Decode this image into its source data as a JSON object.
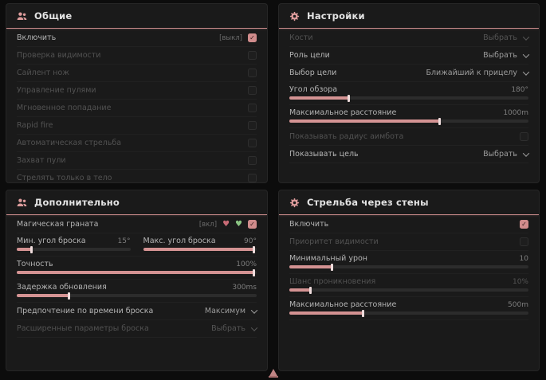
{
  "colors": {
    "accent": "#d49393",
    "panel_bg": "#1a1a1a",
    "page_bg": "#0c0c0c",
    "header_line": "#c98a8a"
  },
  "glyphs": {
    "check": "✓",
    "heart": "♥"
  },
  "panels": [
    {
      "title": "Общие",
      "icon": "users-icon",
      "rows": [
        {
          "type": "toggle",
          "label": "Включить",
          "tag": "[выкл]",
          "checked": true,
          "dim": false
        },
        {
          "type": "toggle",
          "label": "Проверка видимости",
          "checked": false,
          "dim": true
        },
        {
          "type": "toggle",
          "label": "Сайлент нож",
          "checked": false,
          "dim": true
        },
        {
          "type": "toggle",
          "label": "Управление пулями",
          "checked": false,
          "dim": true
        },
        {
          "type": "toggle",
          "label": "Мгновенное попадание",
          "checked": false,
          "dim": true
        },
        {
          "type": "toggle",
          "label": "Rapid fire",
          "checked": false,
          "dim": true
        },
        {
          "type": "toggle",
          "label": "Автоматическая стрельба",
          "checked": false,
          "dim": true
        },
        {
          "type": "toggle",
          "label": "Захват пули",
          "checked": false,
          "dim": true
        },
        {
          "type": "toggle",
          "label": "Стрелять только в тело",
          "checked": false,
          "dim": true
        }
      ]
    },
    {
      "title": "Настройки",
      "icon": "gear-icon",
      "rows": [
        {
          "type": "select",
          "label": "Кости",
          "value": "Выбрать",
          "dim": true
        },
        {
          "type": "select",
          "label": "Роль цели",
          "value": "Выбрать",
          "dim": false
        },
        {
          "type": "select",
          "label": "Выбор цели",
          "value": "Ближайший к прицелу",
          "dim": false
        },
        {
          "type": "slider",
          "label": "Угол обзора",
          "value": "180°",
          "fill": 25,
          "dim": false
        },
        {
          "type": "slider",
          "label": "Максимальное расстояние",
          "value": "1000m",
          "fill": 63,
          "dim": false
        },
        {
          "type": "toggle",
          "label": "Показывать радиус аимбота",
          "checked": false,
          "dim": true
        },
        {
          "type": "select",
          "label": "Показывать цель",
          "value": "Выбрать",
          "dim": false
        }
      ]
    },
    {
      "title": "Дополнительно",
      "icon": "users-icon",
      "rows": [
        {
          "type": "toggle",
          "label": "Магическая граната",
          "tag": "[вкл]",
          "checked": true,
          "dim": false,
          "extra_icons": [
            {
              "name": "red-heart-icon",
              "color": "#c96b76"
            },
            {
              "name": "green-heart-icon",
              "color": "#8bc583"
            }
          ]
        },
        {
          "type": "slider-pair",
          "sliders": [
            {
              "label": "Мин. угол броска",
              "value": "15°",
              "fill": 13
            },
            {
              "label": "Макс. угол броска",
              "value": "90°",
              "fill": 98
            }
          ]
        },
        {
          "type": "slider",
          "label": "Точность",
          "value": "100%",
          "fill": 99,
          "dim": false
        },
        {
          "type": "slider",
          "label": "Задержка обновления",
          "value": "300ms",
          "fill": 22,
          "dim": false
        },
        {
          "type": "select",
          "label": "Предпочтение по времени броска",
          "value": "Максимум",
          "dim": false
        },
        {
          "type": "select",
          "label": "Расширенные параметры броска",
          "value": "Выбрать",
          "dim": true
        }
      ]
    },
    {
      "title": "Стрельба через стены",
      "icon": "gear-icon",
      "rows": [
        {
          "type": "toggle",
          "label": "Включить",
          "checked": true,
          "dim": false
        },
        {
          "type": "toggle",
          "label": "Приоритет видимости",
          "checked": false,
          "dim": true
        },
        {
          "type": "slider",
          "label": "Минимальный урон",
          "value": "10",
          "fill": 18,
          "dim": false
        },
        {
          "type": "slider",
          "label": "Шанс проникновения",
          "value": "10%",
          "fill": 9,
          "dim": true
        },
        {
          "type": "slider",
          "label": "Максимальное расстояние",
          "value": "500m",
          "fill": 31,
          "dim": false
        }
      ]
    }
  ],
  "footer": {
    "marker": "pink-pointer-icon"
  }
}
